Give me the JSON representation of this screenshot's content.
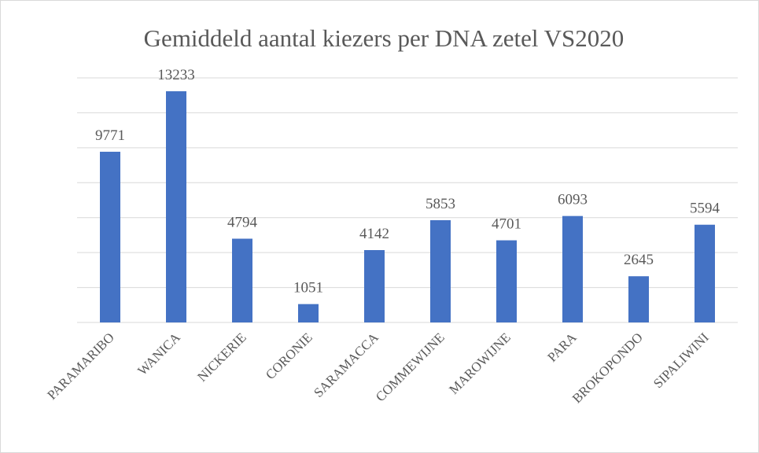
{
  "chart_data": {
    "type": "bar",
    "title": "Gemiddeld aantal kiezers per DNA zetel VS2020",
    "categories": [
      "PARAMARIBO",
      "WANICA",
      "NICKERIE",
      "CORONIE",
      "SARAMACCA",
      "COMMEWIJNE",
      "MAROWIJNE",
      "PARA",
      "BROKOPONDO",
      "SIPALIWINI"
    ],
    "values": [
      9771,
      13233,
      4794,
      1051,
      4142,
      5853,
      4701,
      6093,
      2645,
      5594
    ],
    "color": "#4472c4",
    "ylim": [
      0,
      14000
    ],
    "yticks": [
      0,
      2000,
      4000,
      6000,
      8000,
      10000,
      12000,
      14000
    ],
    "grid": true
  }
}
